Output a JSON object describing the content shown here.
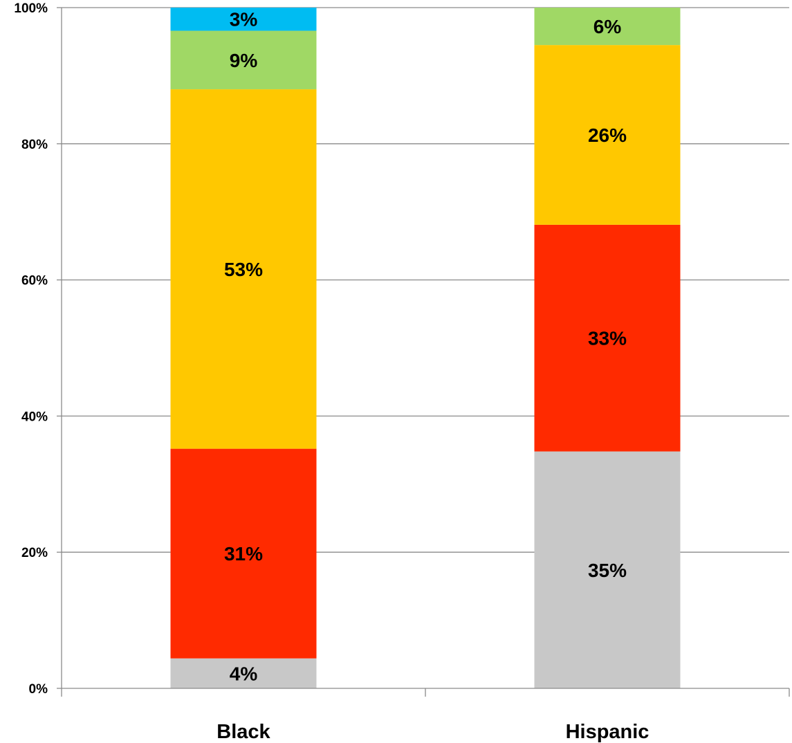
{
  "chart_data": {
    "type": "bar",
    "stacked": true,
    "percent_stacked": true,
    "title": "",
    "xlabel": "",
    "ylabel": "",
    "ylim": [
      0,
      100
    ],
    "y_ticks": [
      0,
      20,
      40,
      60,
      80,
      100
    ],
    "y_tick_labels": [
      "0%",
      "20%",
      "40%",
      "60%",
      "80%",
      "100%"
    ],
    "grid": true,
    "legend": "none",
    "categories": [
      "Black",
      "Hispanic"
    ],
    "series": [
      {
        "color": "#C8C8C8",
        "values": [
          4.4,
          34.8
        ],
        "labels": [
          "4%",
          "35%"
        ]
      },
      {
        "color": "#FF2A00",
        "values": [
          30.8,
          33.3
        ],
        "labels": [
          "31%",
          "33%"
        ]
      },
      {
        "color": "#FFC800",
        "values": [
          52.8,
          26.4
        ],
        "labels": [
          "53%",
          "26%"
        ]
      },
      {
        "color": "#A0D865",
        "values": [
          8.6,
          5.5
        ],
        "labels": [
          "9%",
          "6%"
        ]
      },
      {
        "color": "#00BCF2",
        "values": [
          3.4,
          0
        ],
        "labels": [
          "3%",
          ""
        ]
      }
    ]
  }
}
